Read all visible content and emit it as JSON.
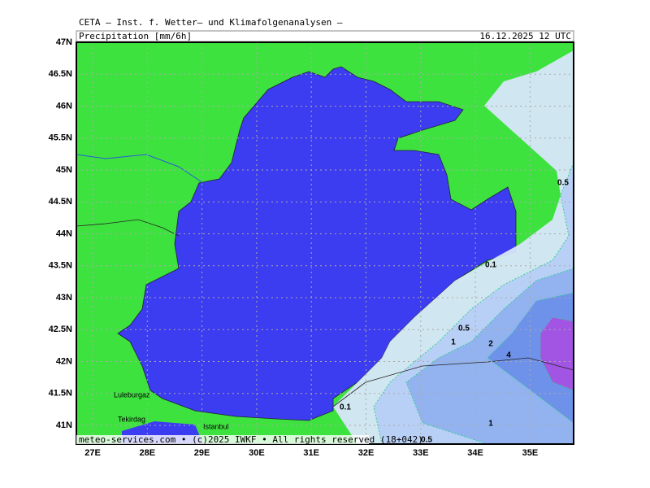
{
  "header": {
    "source": "CETA — Inst. f. Wetter— und Klimafolgenanalysen —",
    "field": "Precipitation [mm/6h]",
    "valid": "16.12.2025 12 UTC"
  },
  "lat_labels": [
    "47N",
    "46.5N",
    "46N",
    "45.5N",
    "45N",
    "44.5N",
    "44N",
    "43.5N",
    "43N",
    "42.5N",
    "42N",
    "41.5N",
    "41N"
  ],
  "lon_labels": [
    "27E",
    "28E",
    "29E",
    "30E",
    "31E",
    "32E",
    "33E",
    "34E",
    "35E"
  ],
  "places": [
    "Luleburgaz",
    "Tekirdag",
    "Istanbul"
  ],
  "contour_labels": [
    "0.5",
    "0.1",
    "0.5",
    "1",
    "2",
    "4",
    "0.1",
    "1",
    "0.5"
  ],
  "footer": "meteo-services.com • (c)2025 IWKF • All rights reserved (18+042)"
}
